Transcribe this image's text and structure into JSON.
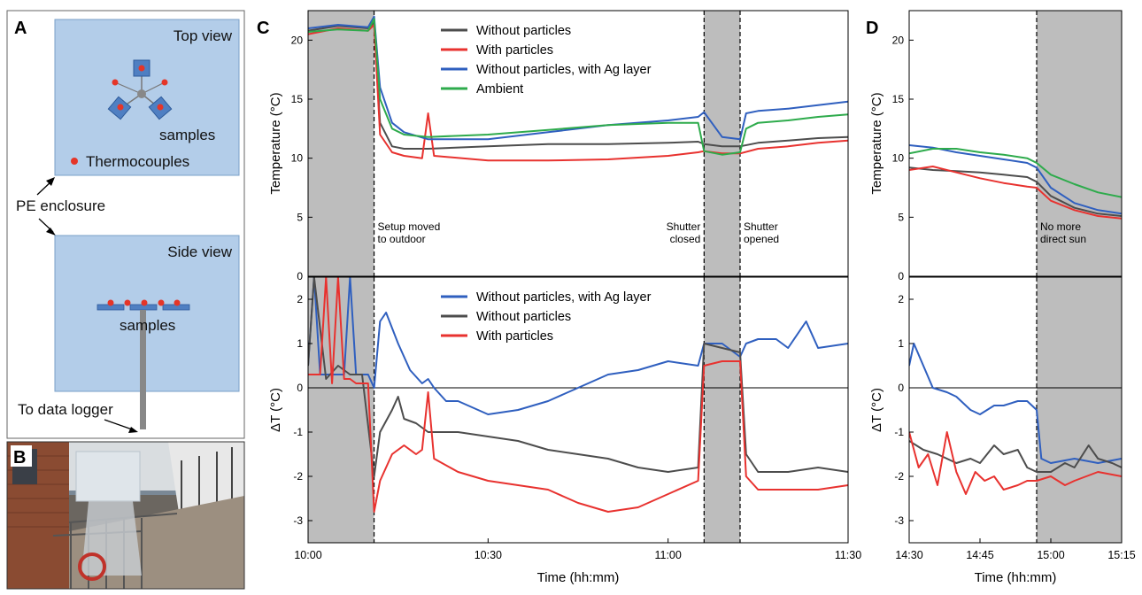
{
  "panels": {
    "A": {
      "letter": "A",
      "top_view_label": "Top view",
      "samples_label": "samples",
      "thermocouples_label": "Thermocouples",
      "pe_label": "PE enclosure",
      "side_view_label": "Side view",
      "side_samples_label": "samples",
      "logger_label": "To data logger"
    },
    "B": {
      "letter": "B"
    },
    "C": {
      "letter": "C"
    },
    "D": {
      "letter": "D"
    }
  },
  "colors": {
    "without": "#4d4d4d",
    "with": "#e8322f",
    "ag": "#2f5fbf",
    "ambient": "#2eab4c",
    "shade": "#bdbdbd",
    "enclosure": "#b3cde9"
  },
  "chart_data": [
    {
      "id": "C-top",
      "type": "line",
      "xlabel": "",
      "ylabel": "Temperature (°C)",
      "xlim": [
        "10:00",
        "11:30"
      ],
      "ylim": [
        0,
        22.5
      ],
      "yticks": [
        0,
        5,
        10,
        15,
        20
      ],
      "grid": false,
      "legend": "top-center",
      "shaded_regions": [
        [
          "10:00",
          "10:11"
        ],
        [
          "11:06",
          "11:12"
        ]
      ],
      "annotations": [
        {
          "x": "10:11",
          "text": [
            "Setup moved",
            "to outdoor"
          ]
        },
        {
          "x": "11:06",
          "text": [
            "Shutter",
            "closed"
          ],
          "align": "right"
        },
        {
          "x": "11:12",
          "text": [
            "Shutter",
            "opened"
          ]
        }
      ],
      "series": [
        {
          "name": "Without particles",
          "color_key": "without",
          "x": [
            "10:00",
            "10:05",
            "10:10",
            "10:11",
            "10:12",
            "10:14",
            "10:16",
            "10:20",
            "10:30",
            "10:40",
            "10:50",
            "11:00",
            "11:05",
            "11:06",
            "11:09",
            "11:12",
            "11:15",
            "11:20",
            "11:25",
            "11:30"
          ],
          "y": [
            20.8,
            21.2,
            21.0,
            21.5,
            13.0,
            11.0,
            10.8,
            10.8,
            11.0,
            11.2,
            11.2,
            11.3,
            11.4,
            11.2,
            11.0,
            11.0,
            11.3,
            11.5,
            11.7,
            11.8
          ]
        },
        {
          "name": "With particles",
          "color_key": "with",
          "x": [
            "10:00",
            "10:05",
            "10:10",
            "10:11",
            "10:12",
            "10:14",
            "10:16",
            "10:19",
            "10:20",
            "10:21",
            "10:30",
            "10:40",
            "10:50",
            "11:00",
            "11:05",
            "11:06",
            "11:09",
            "11:12",
            "11:15",
            "11:20",
            "11:25",
            "11:30"
          ],
          "y": [
            20.5,
            21.0,
            20.8,
            21.3,
            12.0,
            10.5,
            10.2,
            10.0,
            13.8,
            10.2,
            9.8,
            9.8,
            9.9,
            10.2,
            10.5,
            10.6,
            10.4,
            10.4,
            10.8,
            11.0,
            11.3,
            11.5
          ]
        },
        {
          "name": "Without particles, with Ag layer",
          "color_key": "ag",
          "x": [
            "10:00",
            "10:05",
            "10:10",
            "10:11",
            "10:12",
            "10:14",
            "10:16",
            "10:20",
            "10:30",
            "10:40",
            "10:50",
            "11:00",
            "11:05",
            "11:06",
            "11:09",
            "11:12",
            "11:13",
            "11:15",
            "11:20",
            "11:25",
            "11:30"
          ],
          "y": [
            21.0,
            21.3,
            21.1,
            22.0,
            16.0,
            13.0,
            12.2,
            11.6,
            11.6,
            12.2,
            12.8,
            13.2,
            13.5,
            13.9,
            11.8,
            11.6,
            13.8,
            14.0,
            14.2,
            14.5,
            14.8
          ]
        },
        {
          "name": "Ambient",
          "color_key": "ambient",
          "x": [
            "10:00",
            "10:05",
            "10:10",
            "10:11",
            "10:12",
            "10:14",
            "10:16",
            "10:20",
            "10:30",
            "10:40",
            "10:50",
            "11:00",
            "11:05",
            "11:06",
            "11:09",
            "11:12",
            "11:13",
            "11:15",
            "11:20",
            "11:25",
            "11:30"
          ],
          "y": [
            20.7,
            20.9,
            20.8,
            21.8,
            15.0,
            12.5,
            12.0,
            11.8,
            12.0,
            12.4,
            12.8,
            13.0,
            13.0,
            10.6,
            10.3,
            10.5,
            12.5,
            13.0,
            13.2,
            13.5,
            13.7
          ]
        }
      ]
    },
    {
      "id": "C-bottom",
      "type": "line",
      "xlabel": "Time (hh:mm)",
      "ylabel": "ΔT (°C)",
      "xlim": [
        "10:00",
        "11:30"
      ],
      "xticks": [
        "10:00",
        "10:30",
        "11:00",
        "11:30"
      ],
      "ylim": [
        -3.5,
        2.5
      ],
      "yticks": [
        -3,
        -2,
        -1,
        0,
        1,
        2
      ],
      "zero_line": true,
      "grid": false,
      "legend": "top-center",
      "shaded_regions": [
        [
          "10:00",
          "10:11"
        ],
        [
          "11:06",
          "11:12"
        ]
      ],
      "series": [
        {
          "name": "Without particles, with Ag layer",
          "color_key": "ag",
          "x": [
            "10:00",
            "10:01",
            "10:02",
            "10:04",
            "10:06",
            "10:07",
            "10:08",
            "10:10",
            "10:11",
            "10:12",
            "10:13",
            "10:15",
            "10:17",
            "10:19",
            "10:20",
            "10:21",
            "10:23",
            "10:25",
            "10:30",
            "10:35",
            "10:40",
            "10:45",
            "10:50",
            "10:55",
            "11:00",
            "11:05",
            "11:06",
            "11:09",
            "11:12",
            "11:13",
            "11:15",
            "11:18",
            "11:20",
            "11:23",
            "11:25",
            "11:30"
          ],
          "y": [
            0.5,
            2.5,
            0.3,
            0.3,
            0.3,
            2.5,
            0.3,
            0.3,
            0.0,
            1.5,
            1.7,
            1.0,
            0.4,
            0.1,
            0.2,
            0.0,
            -0.3,
            -0.3,
            -0.6,
            -0.5,
            -0.3,
            0.0,
            0.3,
            0.4,
            0.6,
            0.5,
            1.0,
            1.0,
            0.7,
            1.0,
            1.1,
            1.1,
            0.9,
            1.5,
            0.9,
            1.0
          ]
        },
        {
          "name": "Without particles",
          "color_key": "without",
          "x": [
            "10:00",
            "10:01",
            "10:03",
            "10:05",
            "10:07",
            "10:09",
            "10:11",
            "10:12",
            "10:14",
            "10:15",
            "10:16",
            "10:18",
            "10:20",
            "10:25",
            "10:30",
            "10:35",
            "10:40",
            "10:45",
            "10:50",
            "10:55",
            "11:00",
            "11:05",
            "11:06",
            "11:09",
            "11:12",
            "11:13",
            "11:15",
            "11:20",
            "11:25",
            "11:30"
          ],
          "y": [
            0.5,
            2.5,
            0.2,
            0.5,
            0.3,
            0.3,
            -2.0,
            -1.0,
            -0.5,
            -0.2,
            -0.7,
            -0.8,
            -1.0,
            -1.0,
            -1.1,
            -1.2,
            -1.4,
            -1.5,
            -1.6,
            -1.8,
            -1.9,
            -1.8,
            1.0,
            0.9,
            0.8,
            -1.5,
            -1.9,
            -1.9,
            -1.8,
            -1.9
          ]
        },
        {
          "name": "With particles",
          "color_key": "with",
          "x": [
            "10:00",
            "10:02",
            "10:03",
            "10:04",
            "10:05",
            "10:06",
            "10:07",
            "10:08",
            "10:10",
            "10:11",
            "10:12",
            "10:14",
            "10:16",
            "10:18",
            "10:19",
            "10:20",
            "10:21",
            "10:25",
            "10:30",
            "10:35",
            "10:40",
            "10:45",
            "10:50",
            "10:55",
            "11:00",
            "11:05",
            "11:06",
            "11:09",
            "11:12",
            "11:13",
            "11:15",
            "11:20",
            "11:25",
            "11:30"
          ],
          "y": [
            0.3,
            0.3,
            2.5,
            0.1,
            2.5,
            0.2,
            0.2,
            0.1,
            0.1,
            -2.8,
            -2.1,
            -1.5,
            -1.3,
            -1.5,
            -1.4,
            -0.1,
            -1.6,
            -1.9,
            -2.1,
            -2.2,
            -2.3,
            -2.6,
            -2.8,
            -2.7,
            -2.4,
            -2.1,
            0.5,
            0.6,
            0.6,
            -2.0,
            -2.3,
            -2.3,
            -2.3,
            -2.2
          ]
        }
      ]
    },
    {
      "id": "D-top",
      "type": "line",
      "xlabel": "",
      "ylabel": "Temperature (°C)",
      "xlim": [
        "14:30",
        "15:15"
      ],
      "ylim": [
        0,
        22.5
      ],
      "yticks": [
        0,
        5,
        10,
        15,
        20
      ],
      "grid": false,
      "shaded_regions": [
        [
          "14:57",
          "15:15"
        ]
      ],
      "annotations": [
        {
          "x": "14:57",
          "text": [
            "No more",
            "direct sun"
          ]
        }
      ],
      "series": [
        {
          "name": "",
          "color_key": "without",
          "x": [
            "14:30",
            "14:35",
            "14:40",
            "14:45",
            "14:50",
            "14:55",
            "14:57",
            "15:00",
            "15:05",
            "15:10",
            "15:15"
          ],
          "y": [
            9.2,
            9.0,
            8.9,
            8.8,
            8.6,
            8.4,
            8.0,
            6.8,
            5.8,
            5.3,
            5.1
          ]
        },
        {
          "name": "",
          "color_key": "with",
          "x": [
            "14:30",
            "14:35",
            "14:40",
            "14:45",
            "14:50",
            "14:55",
            "14:57",
            "15:00",
            "15:05",
            "15:10",
            "15:15"
          ],
          "y": [
            9.0,
            9.3,
            8.8,
            8.3,
            7.9,
            7.6,
            7.5,
            6.4,
            5.6,
            5.1,
            4.9
          ]
        },
        {
          "name": "",
          "color_key": "ag",
          "x": [
            "14:30",
            "14:35",
            "14:40",
            "14:45",
            "14:50",
            "14:55",
            "14:57",
            "15:00",
            "15:05",
            "15:10",
            "15:15"
          ],
          "y": [
            11.1,
            10.9,
            10.5,
            10.2,
            9.9,
            9.6,
            9.2,
            7.5,
            6.2,
            5.6,
            5.3
          ]
        },
        {
          "name": "",
          "color_key": "ambient",
          "x": [
            "14:30",
            "14:35",
            "14:40",
            "14:45",
            "14:50",
            "14:55",
            "14:57",
            "15:00",
            "15:05",
            "15:10",
            "15:15"
          ],
          "y": [
            10.4,
            10.8,
            10.8,
            10.5,
            10.3,
            10.0,
            9.6,
            8.6,
            7.8,
            7.1,
            6.7
          ]
        }
      ]
    },
    {
      "id": "D-bottom",
      "type": "line",
      "xlabel": "Time (hh:mm)",
      "ylabel": "ΔT (°C)",
      "xlim": [
        "14:30",
        "15:15"
      ],
      "xticks": [
        "14:30",
        "14:45",
        "15:00",
        "15:15"
      ],
      "ylim": [
        -3.5,
        2.5
      ],
      "yticks": [
        -3,
        -2,
        -1,
        0,
        1,
        2
      ],
      "zero_line": true,
      "grid": false,
      "shaded_regions": [
        [
          "14:57",
          "15:15"
        ]
      ],
      "series": [
        {
          "name": "",
          "color_key": "ag",
          "x": [
            "14:30",
            "14:31",
            "14:33",
            "14:35",
            "14:38",
            "14:40",
            "14:43",
            "14:45",
            "14:48",
            "14:50",
            "14:53",
            "14:55",
            "14:57",
            "14:58",
            "15:00",
            "15:05",
            "15:10",
            "15:15"
          ],
          "y": [
            0.5,
            1.0,
            0.5,
            0.0,
            -0.1,
            -0.2,
            -0.5,
            -0.6,
            -0.4,
            -0.4,
            -0.3,
            -0.3,
            -0.5,
            -1.6,
            -1.7,
            -1.6,
            -1.7,
            -1.6
          ]
        },
        {
          "name": "",
          "color_key": "without",
          "x": [
            "14:30",
            "14:33",
            "14:36",
            "14:40",
            "14:43",
            "14:45",
            "14:48",
            "14:50",
            "14:53",
            "14:55",
            "14:57",
            "15:00",
            "15:03",
            "15:05",
            "15:08",
            "15:10",
            "15:13",
            "15:15"
          ],
          "y": [
            -1.2,
            -1.4,
            -1.5,
            -1.7,
            -1.6,
            -1.7,
            -1.3,
            -1.5,
            -1.4,
            -1.8,
            -1.9,
            -1.9,
            -1.7,
            -1.8,
            -1.3,
            -1.6,
            -1.7,
            -1.8
          ]
        },
        {
          "name": "",
          "color_key": "with",
          "x": [
            "14:30",
            "14:32",
            "14:34",
            "14:36",
            "14:38",
            "14:40",
            "14:42",
            "14:44",
            "14:46",
            "14:48",
            "14:50",
            "14:53",
            "14:55",
            "14:57",
            "15:00",
            "15:03",
            "15:05",
            "15:10",
            "15:15"
          ],
          "y": [
            -1.0,
            -1.8,
            -1.5,
            -2.2,
            -1.0,
            -1.9,
            -2.4,
            -1.9,
            -2.1,
            -2.0,
            -2.3,
            -2.2,
            -2.1,
            -2.1,
            -2.0,
            -2.2,
            -2.1,
            -1.9,
            -2.0
          ]
        }
      ]
    }
  ]
}
